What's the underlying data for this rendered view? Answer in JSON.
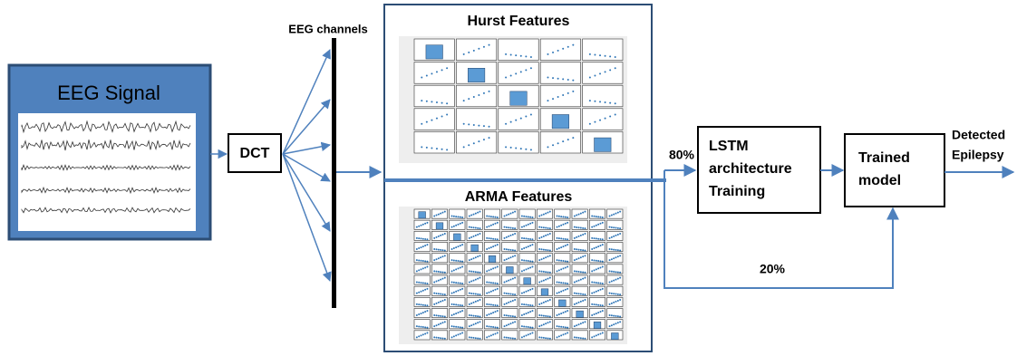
{
  "nodes": {
    "eeg_signal": {
      "label": "EEG Signal"
    },
    "dct": {
      "label": "DCT"
    },
    "channels": {
      "label": "EEG channels"
    },
    "hurst": {
      "label": "Hurst Features"
    },
    "arma": {
      "label": "ARMA Features"
    },
    "lstm": {
      "lines": [
        "LSTM",
        "architecture",
        "Training"
      ]
    },
    "trained": {
      "lines": [
        "Trained",
        "model"
      ]
    },
    "output": {
      "lines": [
        "Detected",
        "Epilepsy"
      ]
    }
  },
  "edges": {
    "train_split": "80%",
    "test_split": "20%"
  }
}
